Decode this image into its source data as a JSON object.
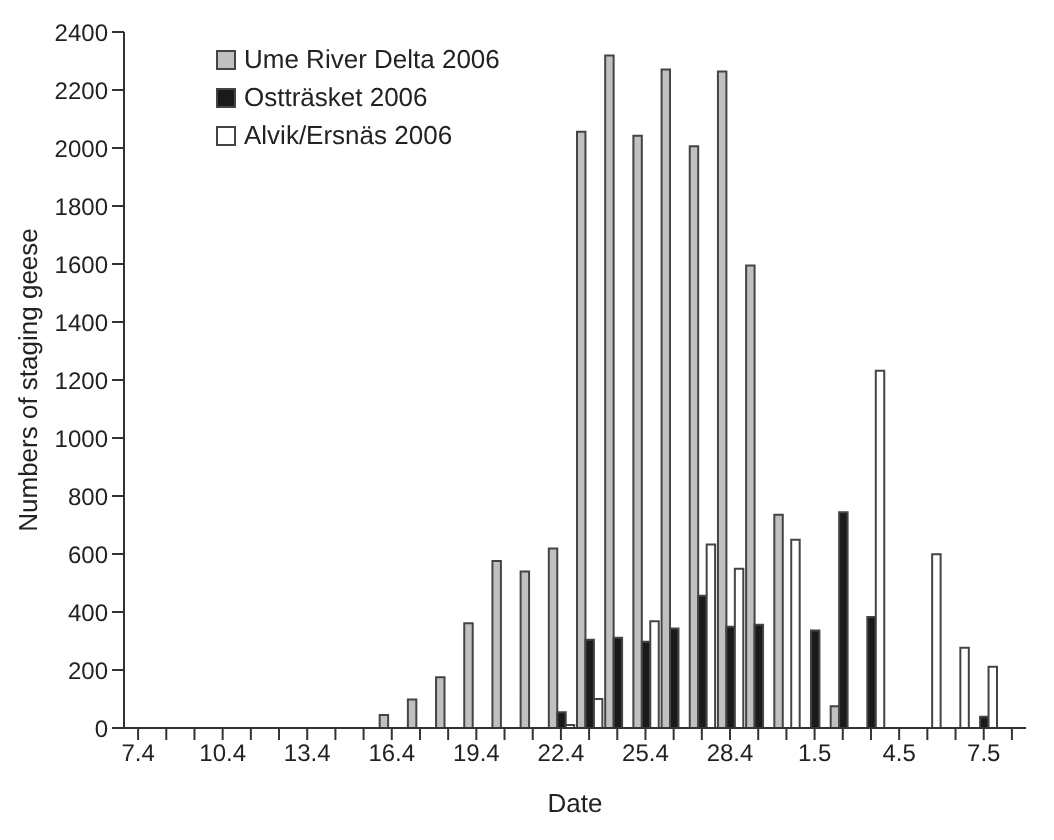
{
  "chart_data": {
    "type": "bar",
    "xlabel": "Date",
    "ylabel": "Numbers of staging geese",
    "categories": [
      "7.4",
      null,
      null,
      "10.4",
      null,
      null,
      "13.4",
      null,
      null,
      "16.4",
      null,
      null,
      "19.4",
      null,
      null,
      "22.4",
      null,
      null,
      "25.4",
      null,
      null,
      "28.4",
      null,
      null,
      "1.5",
      null,
      null,
      "4.5",
      null,
      null,
      "7.5",
      null
    ],
    "series": [
      {
        "name": "Ume River Delta 2006",
        "color": "#c0c0c0",
        "values": [
          0,
          0,
          0,
          0,
          0,
          0,
          0,
          0,
          0,
          45,
          98,
          175,
          361,
          576,
          540,
          619,
          2056,
          2319,
          2042,
          2271,
          2006,
          2264,
          1595,
          735,
          0,
          75,
          0,
          0,
          0,
          0,
          0,
          0
        ]
      },
      {
        "name": "Ostträsket 2006",
        "color": "#1a1a1a",
        "values": [
          0,
          0,
          0,
          0,
          0,
          0,
          0,
          0,
          0,
          0,
          0,
          0,
          0,
          0,
          0,
          54,
          304,
          311,
          297,
          343,
          456,
          349,
          356,
          0,
          336,
          744,
          383,
          0,
          0,
          0,
          39,
          0
        ]
      },
      {
        "name": "Alvik/Ersnäs 2006",
        "color": "#ffffff",
        "values": [
          0,
          0,
          0,
          0,
          0,
          0,
          0,
          0,
          0,
          null,
          null,
          0,
          0,
          0,
          0,
          10,
          100,
          0,
          368,
          0,
          633,
          549,
          0,
          649,
          0,
          0,
          1232,
          0,
          599,
          277,
          211,
          0
        ]
      }
    ],
    "ylim": [
      0,
      2400
    ],
    "yticks": [
      0,
      200,
      400,
      600,
      800,
      1000,
      1200,
      1400,
      1600,
      1800,
      2000,
      2200,
      2400
    ],
    "grid": false,
    "legend": "top left"
  }
}
